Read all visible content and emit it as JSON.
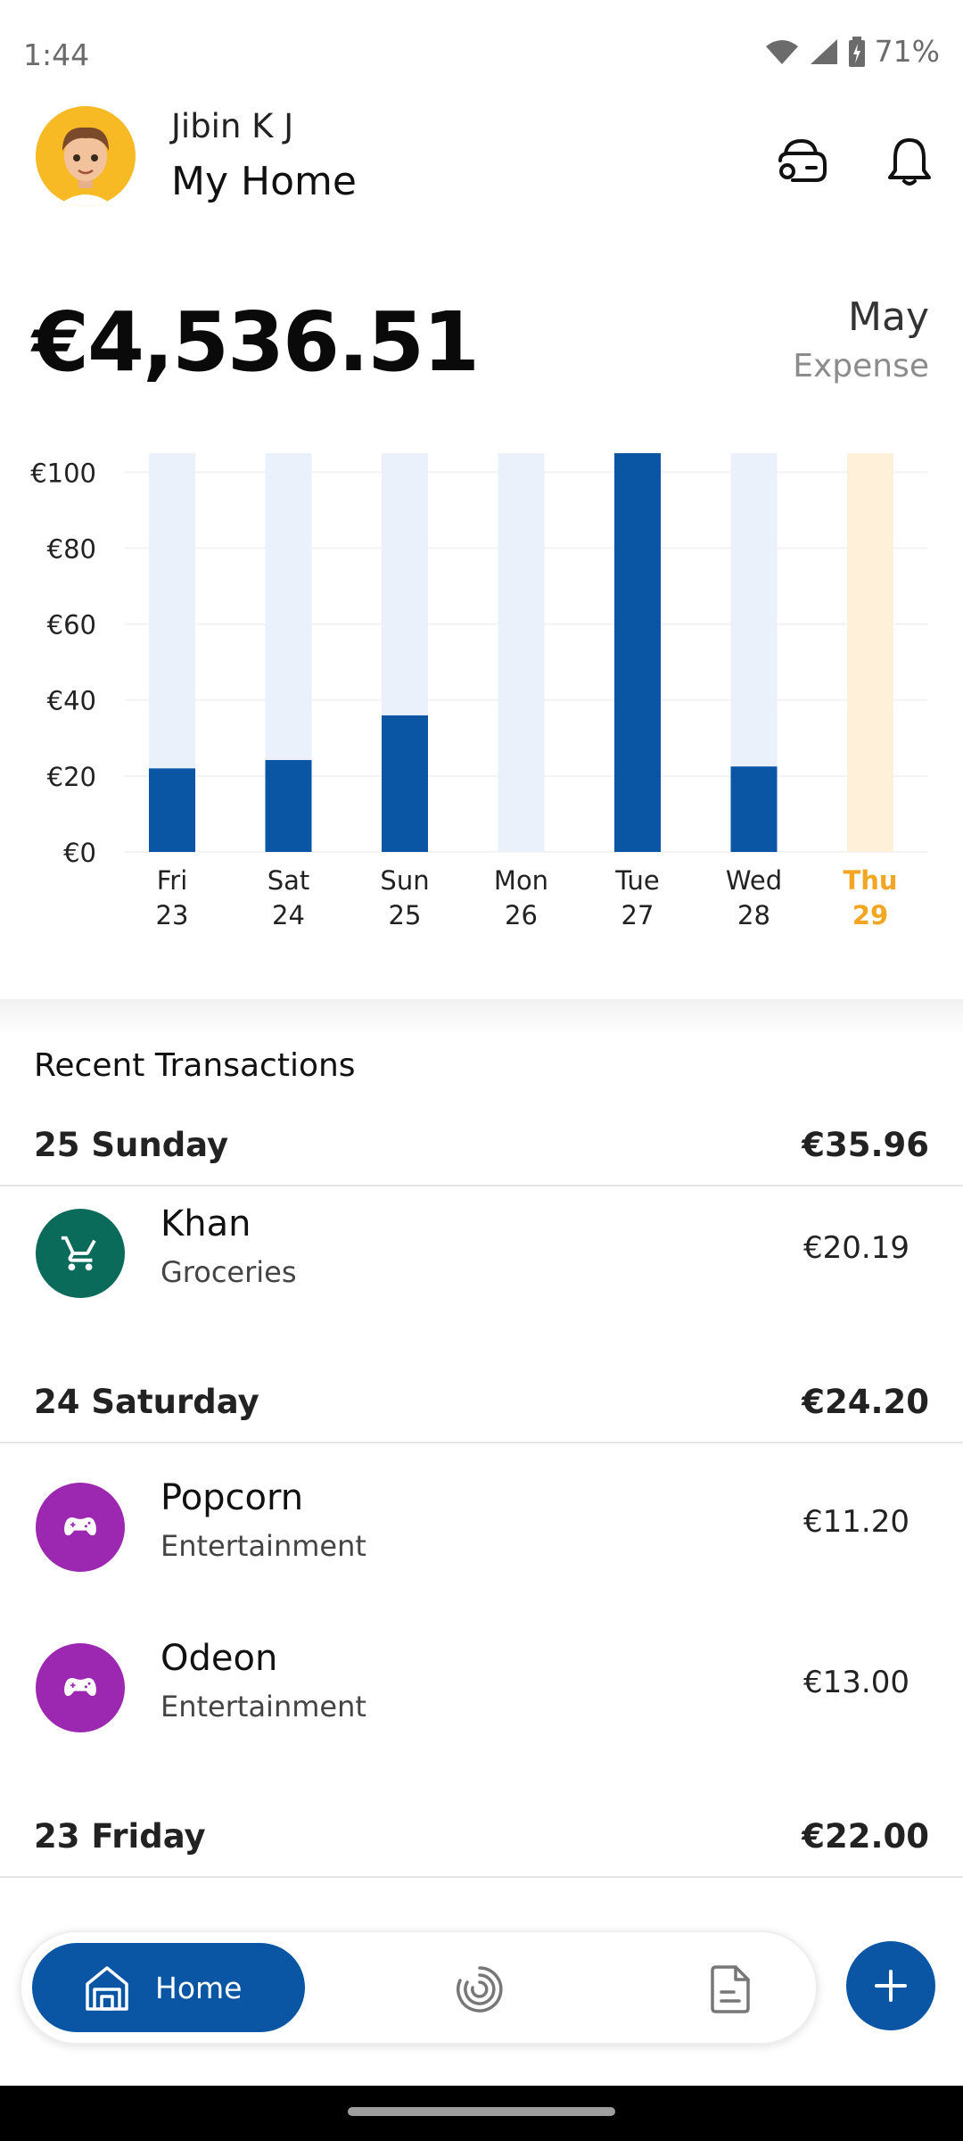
{
  "status_bar": {
    "time": "1:44",
    "battery": "71%"
  },
  "header": {
    "user_name": "Jibin K J",
    "home_name": "My Home"
  },
  "summary": {
    "total": "€4,536.51",
    "month": "May",
    "period_label": "Expense"
  },
  "chart_data": {
    "type": "bar",
    "categories": [
      "Fri 23",
      "Sat 24",
      "Sun 25",
      "Mon 26",
      "Tue 27",
      "Wed 28",
      "Thu 29"
    ],
    "day_names": [
      "Fri",
      "Sat",
      "Sun",
      "Mon",
      "Tue",
      "Wed",
      "Thu"
    ],
    "day_numbers": [
      "23",
      "24",
      "25",
      "26",
      "27",
      "28",
      "29"
    ],
    "values": [
      22.0,
      24.2,
      35.96,
      0,
      105,
      22.5,
      0
    ],
    "y_ticks": [
      "€100",
      "€80",
      "€60",
      "€40",
      "€20",
      "€0"
    ],
    "ylim": [
      0,
      105
    ],
    "highlight_index": 6,
    "colors": {
      "bar": "#0a56a5",
      "track": "#eaf1fa",
      "highlight_track": "#fff1d9",
      "highlight_text": "#f2a624"
    }
  },
  "transactions": {
    "heading": "Recent Transactions",
    "days": [
      {
        "label": "25 Sunday",
        "total": "€35.96",
        "items": [
          {
            "title": "Khan",
            "category": "Groceries",
            "amount": "€20.19",
            "icon": "shopping-cart-icon",
            "color": "#0b6b5b"
          }
        ]
      },
      {
        "label": "24 Saturday",
        "total": "€24.20",
        "items": [
          {
            "title": "Popcorn",
            "category": "Entertainment",
            "amount": "€11.20",
            "icon": "gamepad-icon",
            "color": "#9c27b0"
          },
          {
            "title": "Odeon",
            "category": "Entertainment",
            "amount": "€13.00",
            "icon": "gamepad-icon",
            "color": "#9c27b0"
          }
        ]
      },
      {
        "label": "23 Friday",
        "total": "€22.00",
        "items": []
      }
    ]
  },
  "nav": {
    "home_label": "Home"
  }
}
